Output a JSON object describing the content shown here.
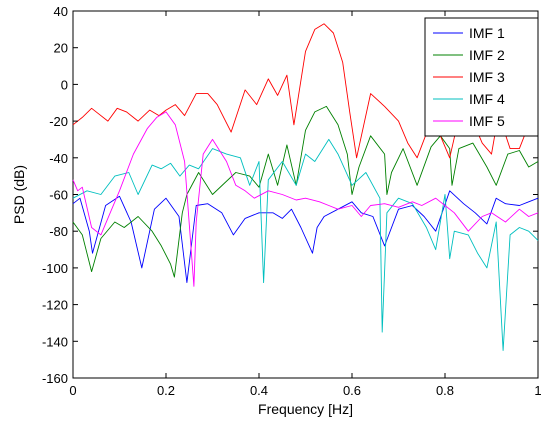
{
  "chart_data": {
    "type": "line",
    "title": "",
    "xlabel": "Frequency [Hz]",
    "ylabel": "PSD (dB)",
    "xlim": [
      0,
      1
    ],
    "ylim": [
      -160,
      40
    ],
    "xticks": [
      0,
      0.2,
      0.4,
      0.6,
      0.8,
      1
    ],
    "xtick_labels": [
      "0",
      "0.2",
      "0.4",
      "0.6",
      "0.8",
      "1"
    ],
    "yticks": [
      -160,
      -140,
      -120,
      -100,
      -80,
      -60,
      -40,
      -20,
      0,
      20,
      40
    ],
    "ytick_labels": [
      "-160",
      "-140",
      "-120",
      "-100",
      "-80",
      "-60",
      "-40",
      "-20",
      "0",
      "20",
      "40"
    ],
    "grid": false,
    "legend_position": "top-right",
    "series": [
      {
        "name": "IMF 1",
        "color": "#0000ff",
        "x": [
          0,
          0.015,
          0.035,
          0.042,
          0.07,
          0.1,
          0.125,
          0.148,
          0.175,
          0.2,
          0.228,
          0.245,
          0.265,
          0.29,
          0.32,
          0.345,
          0.37,
          0.4,
          0.43,
          0.45,
          0.47,
          0.49,
          0.515,
          0.525,
          0.54,
          0.57,
          0.6,
          0.62,
          0.645,
          0.67,
          0.7,
          0.73,
          0.755,
          0.78,
          0.81,
          0.84,
          0.865,
          0.89,
          0.91,
          0.93,
          0.96,
          0.98,
          1
        ],
        "y": [
          -65,
          -62,
          -80,
          -92,
          -66,
          -61,
          -75,
          -100,
          -68,
          -62,
          -72,
          -108,
          -66,
          -65,
          -70,
          -82,
          -73,
          -70,
          -70,
          -73,
          -68,
          -78,
          -92,
          -78,
          -72,
          -68,
          -64,
          -70,
          -72,
          -88,
          -68,
          -66,
          -72,
          -80,
          -58,
          -65,
          -70,
          -76,
          -62,
          -65,
          -66,
          -64,
          -62
        ]
      },
      {
        "name": "IMF 2",
        "color": "#008000",
        "x": [
          0,
          0.02,
          0.04,
          0.06,
          0.09,
          0.11,
          0.14,
          0.17,
          0.19,
          0.21,
          0.218,
          0.235,
          0.245,
          0.27,
          0.3,
          0.325,
          0.35,
          0.38,
          0.4,
          0.42,
          0.44,
          0.46,
          0.48,
          0.5,
          0.52,
          0.545,
          0.57,
          0.59,
          0.6,
          0.615,
          0.64,
          0.67,
          0.675,
          0.685,
          0.71,
          0.74,
          0.77,
          0.79,
          0.81,
          0.815,
          0.83,
          0.86,
          0.89,
          0.91,
          0.935,
          0.96,
          0.98,
          1
        ],
        "y": [
          -75,
          -82,
          -102,
          -84,
          -75,
          -78,
          -72,
          -80,
          -88,
          -98,
          -105,
          -70,
          -60,
          -48,
          -60,
          -54,
          -48,
          -50,
          -56,
          -38,
          -55,
          -33,
          -55,
          -25,
          -15,
          -12,
          -22,
          -38,
          -60,
          -45,
          -28,
          -38,
          -60,
          -48,
          -35,
          -55,
          -34,
          -28,
          -35,
          -55,
          -35,
          -32,
          -45,
          -55,
          -38,
          -36,
          -45,
          -42
        ]
      },
      {
        "name": "IMF 3",
        "color": "#ff0000",
        "x": [
          0,
          0.02,
          0.04,
          0.055,
          0.075,
          0.095,
          0.115,
          0.14,
          0.165,
          0.185,
          0.2,
          0.22,
          0.24,
          0.265,
          0.29,
          0.31,
          0.34,
          0.37,
          0.395,
          0.42,
          0.44,
          0.46,
          0.475,
          0.5,
          0.52,
          0.54,
          0.56,
          0.58,
          0.595,
          0.61,
          0.64,
          0.67,
          0.7,
          0.72,
          0.74,
          0.77,
          0.79,
          0.81,
          0.83,
          0.86,
          0.88,
          0.9,
          0.915,
          0.94,
          0.96,
          0.98,
          1
        ],
        "y": [
          -22,
          -18,
          -13,
          -16,
          -20,
          -13,
          -15,
          -20,
          -14,
          -17,
          -14,
          -11,
          -17,
          -5,
          -5,
          -11,
          -26,
          -3,
          -11,
          3,
          -6,
          5,
          -22,
          18,
          30,
          33,
          28,
          12,
          -15,
          -40,
          -5,
          -12,
          -20,
          -32,
          -40,
          -20,
          -28,
          -40,
          -18,
          -20,
          -32,
          -38,
          -16,
          -35,
          -35,
          -22,
          -25
        ]
      },
      {
        "name": "IMF 4",
        "color": "#00bfbf",
        "x": [
          0,
          0.03,
          0.06,
          0.09,
          0.12,
          0.14,
          0.17,
          0.19,
          0.21,
          0.23,
          0.25,
          0.27,
          0.3,
          0.33,
          0.36,
          0.38,
          0.4,
          0.41,
          0.42,
          0.45,
          0.48,
          0.5,
          0.52,
          0.55,
          0.57,
          0.6,
          0.63,
          0.66,
          0.665,
          0.675,
          0.7,
          0.73,
          0.76,
          0.78,
          0.8,
          0.81,
          0.82,
          0.85,
          0.87,
          0.89,
          0.91,
          0.925,
          0.94,
          0.96,
          0.98,
          1
        ],
        "y": [
          -62,
          -58,
          -60,
          -50,
          -48,
          -60,
          -44,
          -46,
          -43,
          -50,
          -44,
          -46,
          -35,
          -38,
          -40,
          -55,
          -42,
          -108,
          -52,
          -42,
          -55,
          -38,
          -42,
          -30,
          -38,
          -55,
          -48,
          -62,
          -135,
          -70,
          -62,
          -65,
          -78,
          -90,
          -60,
          -95,
          -80,
          -82,
          -92,
          -100,
          -75,
          -145,
          -82,
          -78,
          -80,
          -85
        ]
      },
      {
        "name": "IMF 5",
        "color": "#ff00ff",
        "x": [
          0,
          0.01,
          0.02,
          0.04,
          0.06,
          0.08,
          0.1,
          0.13,
          0.16,
          0.18,
          0.2,
          0.22,
          0.24,
          0.26,
          0.265,
          0.28,
          0.3,
          0.33,
          0.35,
          0.37,
          0.39,
          0.42,
          0.45,
          0.48,
          0.5,
          0.53,
          0.55,
          0.57,
          0.6,
          0.62,
          0.64,
          0.67,
          0.7,
          0.73,
          0.75,
          0.78,
          0.8,
          0.82,
          0.85,
          0.88,
          0.9,
          0.93,
          0.96,
          0.98,
          1
        ],
        "y": [
          -52,
          -58,
          -56,
          -78,
          -82,
          -70,
          -58,
          -38,
          -24,
          -18,
          -15,
          -22,
          -42,
          -110,
          -75,
          -38,
          -30,
          -42,
          -55,
          -58,
          -62,
          -58,
          -60,
          -63,
          -62,
          -64,
          -66,
          -68,
          -66,
          -72,
          -66,
          -65,
          -67,
          -64,
          -66,
          -62,
          -66,
          -70,
          -80,
          -72,
          -70,
          -75,
          -68,
          -72,
          -70
        ]
      }
    ]
  }
}
